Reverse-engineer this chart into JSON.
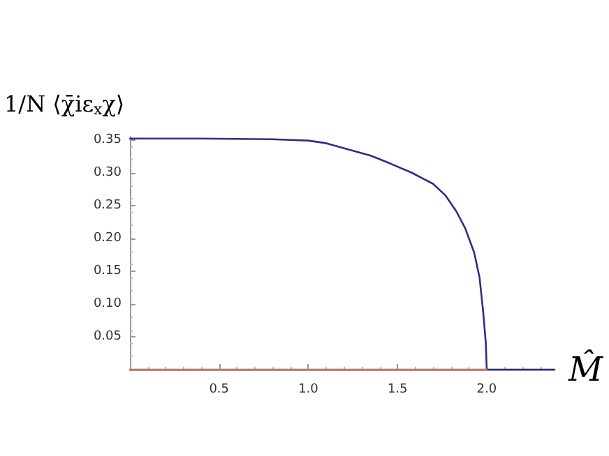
{
  "chart_data": {
    "type": "line",
    "xlabel": "M̂",
    "ylabel": "1/N ⟨χ̄iε$_{x}$χ⟩",
    "xlim": [
      0,
      2.38
    ],
    "xticks": [
      0.5,
      {
        "value": 1,
        "label": "1.0"
      },
      1.5,
      {
        "value": 2,
        "label": "2.0"
      }
    ],
    "ylim": [
      0,
      0.355
    ],
    "yticks": [
      0.05,
      {
        "value": 0.1,
        "label": "0.10"
      },
      0.15,
      {
        "value": 0.2,
        "label": "0.20"
      },
      0.25,
      {
        "value": 0.3,
        "label": "0.30"
      },
      0.35
    ],
    "grid": false,
    "marker": "none",
    "line_style": "solid",
    "series": [
      {
        "color": "#2e2e84",
        "x": [
          0,
          0.4,
          0.8,
          1.0,
          1.1,
          1.23,
          1.35,
          1.46,
          1.58,
          1.7,
          1.77,
          1.83,
          1.88,
          1.93,
          1.96,
          1.98,
          1.995,
          2.0,
          2.38
        ],
        "values": [
          0.352,
          0.352,
          0.351,
          0.349,
          0.345,
          0.335,
          0.326,
          0.314,
          0.3,
          0.283,
          0.265,
          0.241,
          0.215,
          0.178,
          0.14,
          0.088,
          0.04,
          0,
          0
        ]
      },
      {
        "color": "#d0705a",
        "x": [
          0,
          2.0
        ],
        "values": [
          0,
          0
        ]
      }
    ]
  }
}
